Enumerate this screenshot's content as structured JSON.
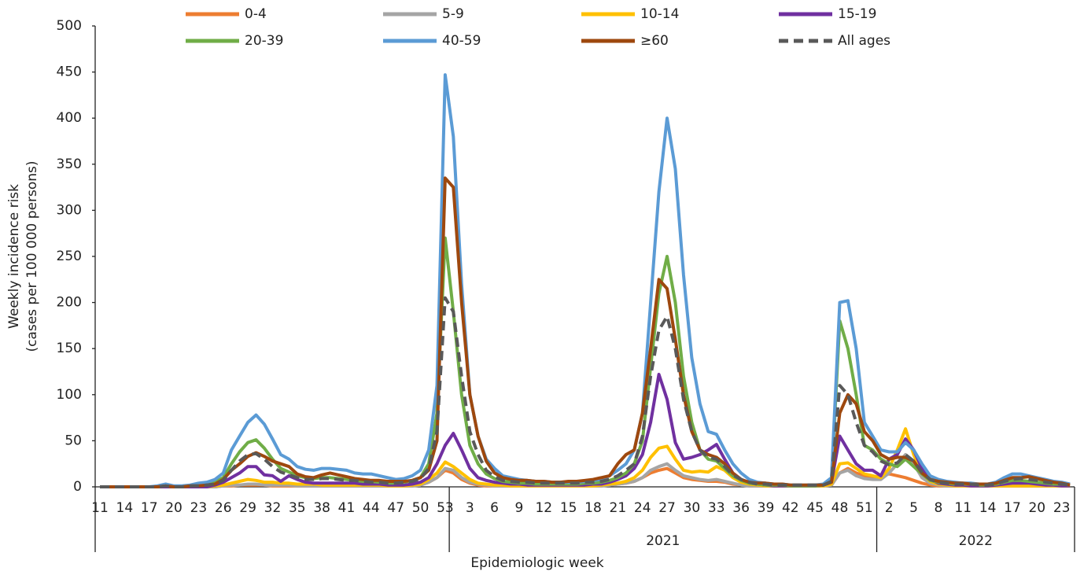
{
  "chart_data": {
    "type": "line",
    "ylabel": [
      "Weekly incidence risk",
      "(cases per 100 000 persons)"
    ],
    "xlabel": "Epidemiologic week",
    "year_labels": [
      "2021",
      "2022"
    ],
    "ylim": [
      0,
      500
    ],
    "yticks": [
      0,
      50,
      100,
      150,
      200,
      250,
      300,
      350,
      400,
      450,
      500
    ],
    "legend": "top",
    "categories": [
      "11",
      null,
      null,
      "14",
      null,
      null,
      "17",
      null,
      null,
      "20",
      null,
      null,
      "23",
      null,
      null,
      "26",
      null,
      null,
      "29",
      null,
      null,
      "32",
      null,
      null,
      "35",
      null,
      null,
      "38",
      null,
      null,
      "41",
      null,
      null,
      "44",
      null,
      null,
      "47",
      null,
      null,
      "50",
      null,
      null,
      "53",
      null,
      null,
      "3",
      null,
      null,
      "6",
      null,
      null,
      "9",
      null,
      null,
      "12",
      null,
      null,
      "15",
      null,
      null,
      "18",
      null,
      null,
      "21",
      null,
      null,
      "24",
      null,
      null,
      "27",
      null,
      null,
      "30",
      null,
      null,
      "33",
      null,
      null,
      "36",
      null,
      null,
      "39",
      null,
      null,
      "42",
      null,
      null,
      "45",
      null,
      null,
      "48",
      null,
      null,
      "51",
      null,
      null,
      "2",
      null,
      null,
      "5",
      null,
      null,
      "8",
      null,
      null,
      "11",
      null,
      null,
      "14",
      null,
      null,
      "17",
      null,
      null,
      "20",
      null,
      null,
      "23",
      null
    ],
    "series": [
      {
        "name": "0-4",
        "color": "#ed7d31",
        "line_style": "solid",
        "values": [
          0,
          0,
          0,
          0,
          0,
          0,
          0,
          0,
          0,
          0,
          0,
          0,
          0,
          0,
          0,
          1,
          1,
          2,
          2,
          2,
          2,
          1,
          1,
          1,
          1,
          1,
          1,
          1,
          1,
          1,
          1,
          1,
          1,
          1,
          1,
          1,
          1,
          1,
          1,
          2,
          5,
          10,
          18,
          15,
          8,
          4,
          2,
          1,
          1,
          1,
          1,
          1,
          1,
          1,
          1,
          1,
          1,
          1,
          1,
          1,
          1,
          1,
          2,
          3,
          4,
          6,
          10,
          15,
          18,
          20,
          15,
          10,
          8,
          7,
          6,
          6,
          5,
          3,
          2,
          1,
          1,
          1,
          1,
          1,
          1,
          1,
          1,
          1,
          1,
          2,
          15,
          20,
          15,
          12,
          10,
          12,
          14,
          12,
          10,
          7,
          4,
          2,
          1,
          1,
          1,
          1,
          1,
          1,
          1,
          1,
          1,
          1,
          1,
          1,
          1,
          1,
          1,
          1,
          1
        ]
      },
      {
        "name": "5-9",
        "color": "#a5a5a5",
        "line_style": "solid",
        "values": [
          0,
          0,
          0,
          0,
          0,
          0,
          0,
          0,
          0,
          0,
          0,
          0,
          0,
          0,
          0,
          1,
          2,
          2,
          3,
          3,
          2,
          2,
          2,
          2,
          1,
          1,
          1,
          1,
          1,
          1,
          1,
          1,
          1,
          1,
          1,
          1,
          1,
          1,
          1,
          2,
          5,
          10,
          20,
          18,
          10,
          5,
          3,
          2,
          1,
          1,
          1,
          1,
          1,
          1,
          1,
          1,
          1,
          1,
          1,
          1,
          1,
          1,
          2,
          3,
          4,
          6,
          10,
          18,
          22,
          25,
          18,
          12,
          10,
          8,
          7,
          8,
          6,
          4,
          2,
          1,
          1,
          1,
          1,
          1,
          1,
          1,
          1,
          1,
          1,
          2,
          15,
          18,
          12,
          9,
          8,
          8,
          15,
          25,
          35,
          25,
          10,
          4,
          2,
          1,
          1,
          1,
          1,
          1,
          1,
          1,
          1,
          1,
          1,
          1,
          1,
          1,
          1,
          1,
          1
        ]
      },
      {
        "name": "10-14",
        "color": "#ffc000",
        "line_style": "solid",
        "values": [
          0,
          0,
          0,
          0,
          0,
          0,
          0,
          0,
          0,
          0,
          0,
          0,
          0,
          0,
          1,
          2,
          4,
          6,
          8,
          7,
          5,
          5,
          4,
          4,
          3,
          3,
          3,
          2,
          2,
          2,
          2,
          2,
          2,
          2,
          2,
          1,
          1,
          1,
          2,
          3,
          8,
          15,
          27,
          22,
          15,
          8,
          4,
          3,
          2,
          2,
          1,
          1,
          1,
          1,
          1,
          1,
          1,
          1,
          1,
          1,
          1,
          2,
          3,
          4,
          6,
          10,
          18,
          32,
          42,
          44,
          30,
          18,
          16,
          17,
          16,
          22,
          18,
          10,
          5,
          3,
          2,
          1,
          1,
          1,
          1,
          1,
          1,
          1,
          1,
          3,
          25,
          26,
          20,
          14,
          12,
          10,
          20,
          40,
          63,
          35,
          15,
          6,
          3,
          2,
          1,
          1,
          1,
          1,
          1,
          1,
          1,
          1,
          1,
          1,
          1,
          1,
          1,
          1,
          1
        ]
      },
      {
        "name": "15-19",
        "color": "#7030a0",
        "line_style": "solid",
        "values": [
          0,
          0,
          0,
          0,
          0,
          0,
          0,
          0,
          0,
          0,
          0,
          0,
          0,
          0,
          2,
          5,
          10,
          15,
          22,
          22,
          13,
          12,
          6,
          12,
          8,
          5,
          4,
          4,
          4,
          4,
          4,
          4,
          3,
          3,
          3,
          2,
          2,
          2,
          3,
          5,
          10,
          25,
          45,
          58,
          40,
          20,
          10,
          7,
          5,
          4,
          3,
          3,
          2,
          2,
          2,
          2,
          2,
          2,
          2,
          2,
          3,
          3,
          5,
          8,
          12,
          20,
          35,
          70,
          122,
          95,
          48,
          30,
          32,
          35,
          40,
          46,
          30,
          15,
          8,
          4,
          3,
          2,
          1,
          1,
          1,
          1,
          1,
          1,
          2,
          5,
          55,
          40,
          25,
          18,
          18,
          12,
          30,
          35,
          52,
          40,
          20,
          8,
          4,
          3,
          2,
          2,
          1,
          1,
          1,
          2,
          3,
          4,
          4,
          4,
          3,
          2,
          2,
          1,
          1
        ]
      },
      {
        "name": "20-39",
        "color": "#70ad47",
        "line_style": "solid",
        "values": [
          0,
          0,
          0,
          0,
          0,
          0,
          0,
          0,
          1,
          0,
          0,
          1,
          2,
          3,
          5,
          10,
          25,
          38,
          48,
          51,
          42,
          30,
          20,
          16,
          12,
          10,
          9,
          10,
          10,
          9,
          8,
          7,
          6,
          6,
          5,
          4,
          4,
          5,
          7,
          10,
          25,
          80,
          270,
          190,
          100,
          45,
          25,
          14,
          9,
          6,
          5,
          4,
          4,
          3,
          3,
          3,
          3,
          3,
          3,
          4,
          4,
          5,
          7,
          10,
          15,
          25,
          50,
          130,
          210,
          250,
          200,
          120,
          70,
          40,
          30,
          28,
          20,
          12,
          7,
          4,
          3,
          2,
          2,
          2,
          1,
          1,
          1,
          1,
          2,
          8,
          180,
          150,
          100,
          45,
          40,
          30,
          25,
          22,
          30,
          22,
          14,
          7,
          5,
          4,
          3,
          3,
          3,
          2,
          2,
          3,
          5,
          7,
          7,
          6,
          5,
          4,
          3,
          3,
          2
        ]
      },
      {
        "name": "40-59",
        "color": "#5b9bd5",
        "line_style": "solid",
        "values": [
          0,
          0,
          0,
          0,
          0,
          0,
          0,
          1,
          3,
          1,
          1,
          2,
          4,
          5,
          8,
          15,
          40,
          55,
          70,
          78,
          68,
          52,
          35,
          30,
          22,
          19,
          18,
          20,
          20,
          19,
          18,
          15,
          14,
          14,
          12,
          10,
          8,
          9,
          12,
          18,
          40,
          110,
          447,
          380,
          220,
          100,
          55,
          30,
          20,
          12,
          10,
          8,
          7,
          6,
          6,
          5,
          5,
          5,
          5,
          6,
          7,
          8,
          12,
          18,
          25,
          40,
          80,
          200,
          320,
          400,
          345,
          230,
          140,
          90,
          60,
          57,
          40,
          25,
          15,
          8,
          5,
          4,
          3,
          3,
          2,
          2,
          2,
          2,
          3,
          10,
          200,
          202,
          150,
          70,
          55,
          40,
          38,
          38,
          48,
          40,
          25,
          12,
          8,
          6,
          5,
          4,
          4,
          3,
          3,
          5,
          10,
          14,
          14,
          12,
          10,
          8,
          6,
          5,
          3
        ]
      },
      {
        "name": "≥60",
        "color": "#9e480e",
        "line_style": "solid",
        "values": [
          0,
          0,
          0,
          0,
          0,
          0,
          0,
          0,
          1,
          0,
          0,
          1,
          1,
          2,
          3,
          8,
          18,
          25,
          33,
          37,
          33,
          28,
          25,
          22,
          14,
          11,
          10,
          13,
          15,
          13,
          11,
          9,
          8,
          7,
          7,
          6,
          6,
          6,
          7,
          10,
          18,
          50,
          335,
          325,
          200,
          100,
          55,
          28,
          15,
          10,
          8,
          7,
          7,
          6,
          6,
          5,
          5,
          6,
          6,
          7,
          8,
          10,
          12,
          25,
          35,
          40,
          80,
          150,
          225,
          215,
          160,
          100,
          60,
          40,
          35,
          32,
          25,
          15,
          8,
          5,
          4,
          4,
          3,
          3,
          2,
          2,
          2,
          2,
          2,
          5,
          80,
          100,
          90,
          60,
          50,
          35,
          30,
          32,
          32,
          28,
          15,
          8,
          6,
          5,
          4,
          4,
          3,
          3,
          3,
          4,
          7,
          10,
          10,
          11,
          9,
          7,
          5,
          4,
          2
        ]
      },
      {
        "name": "All ages",
        "color": "#595959",
        "line_style": "dashed",
        "values": [
          0,
          0,
          0,
          0,
          0,
          0,
          0,
          0,
          1,
          0,
          0,
          1,
          1,
          2,
          3,
          7,
          18,
          28,
          35,
          36,
          30,
          22,
          16,
          13,
          10,
          8,
          8,
          9,
          9,
          8,
          7,
          7,
          6,
          5,
          5,
          4,
          4,
          5,
          6,
          9,
          20,
          60,
          205,
          190,
          120,
          60,
          35,
          18,
          11,
          7,
          6,
          5,
          5,
          4,
          4,
          4,
          4,
          4,
          4,
          5,
          5,
          6,
          8,
          12,
          18,
          25,
          55,
          120,
          170,
          185,
          150,
          95,
          60,
          40,
          32,
          30,
          22,
          13,
          8,
          5,
          3,
          3,
          2,
          2,
          2,
          2,
          2,
          2,
          2,
          6,
          110,
          100,
          70,
          45,
          38,
          28,
          24,
          26,
          35,
          28,
          16,
          8,
          5,
          4,
          3,
          3,
          3,
          2,
          2,
          3,
          6,
          8,
          9,
          8,
          7,
          5,
          4,
          3,
          2
        ]
      }
    ]
  }
}
